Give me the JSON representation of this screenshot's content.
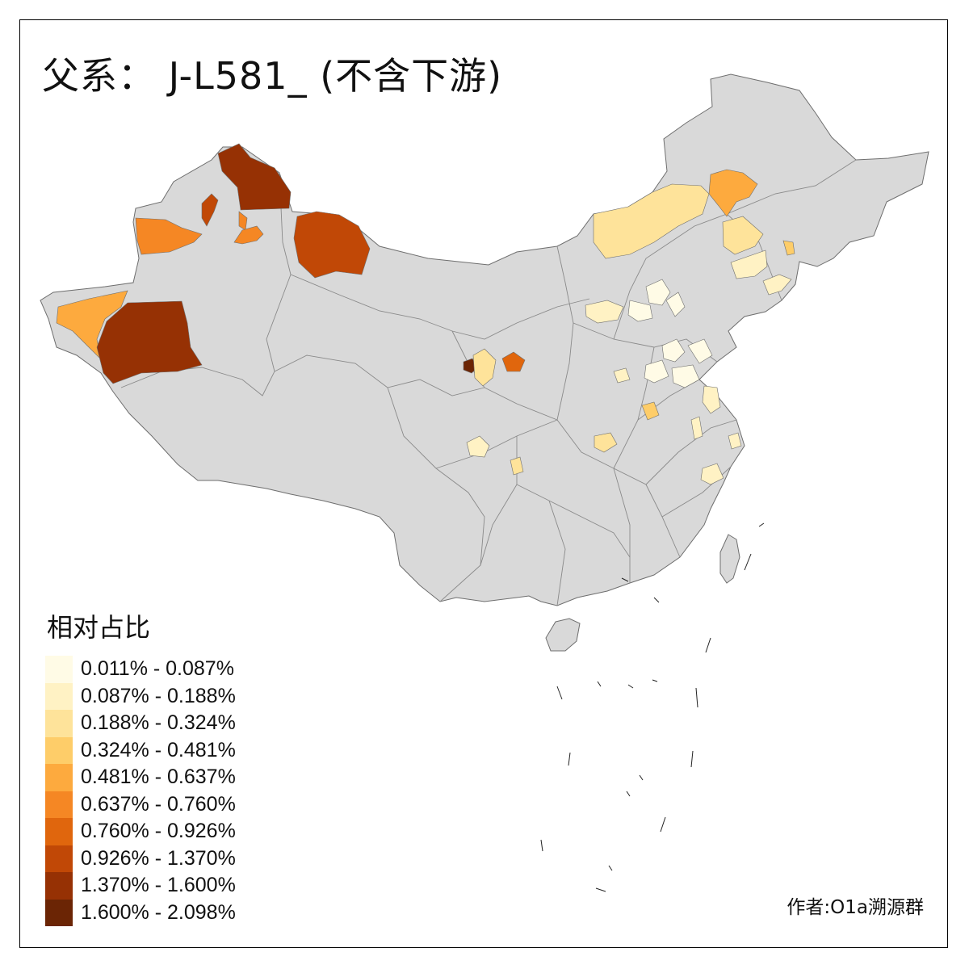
{
  "title": "父系： J-L581_ (不含下游)",
  "legend": {
    "title": "相对占比",
    "items": [
      {
        "label": "0.011% - 0.087%",
        "color": "#fffbe6"
      },
      {
        "label": "0.087% - 0.188%",
        "color": "#fff2c4"
      },
      {
        "label": "0.188% - 0.324%",
        "color": "#fee39a"
      },
      {
        "label": "0.324% - 0.481%",
        "color": "#fecd69"
      },
      {
        "label": "0.481% - 0.637%",
        "color": "#fdaa3e"
      },
      {
        "label": "0.637% - 0.760%",
        "color": "#f58724"
      },
      {
        "label": "0.760% - 0.926%",
        "color": "#e0660d"
      },
      {
        "label": "0.926% - 1.370%",
        "color": "#c14806"
      },
      {
        "label": "1.370% - 1.600%",
        "color": "#963104"
      },
      {
        "label": "1.600% - 2.098%",
        "color": "#6b2505"
      }
    ]
  },
  "credit": "作者:O1a溯源群",
  "colors": {
    "land_nodata": "#d9d9d9",
    "boundary": "#6e6e6e"
  }
}
